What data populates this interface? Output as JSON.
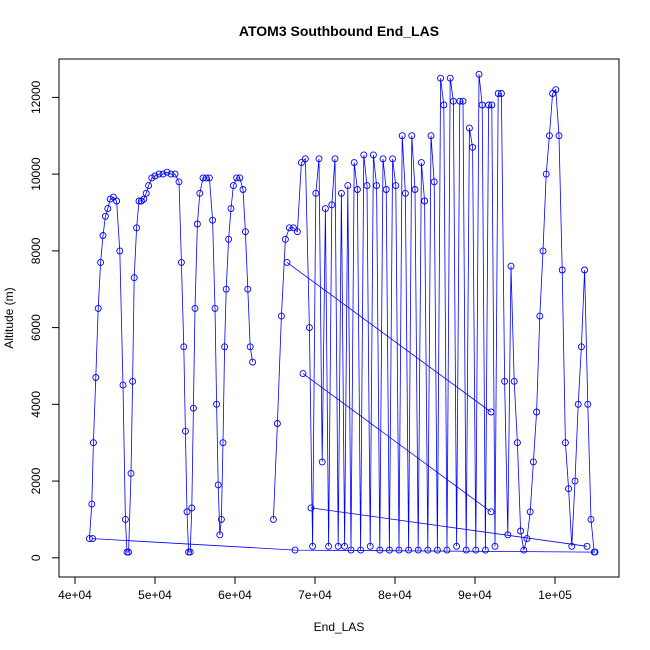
{
  "chart_data": {
    "type": "scatter",
    "title": "ATOM3 Southbound End_LAS",
    "xlabel": "End_LAS",
    "ylabel": "Altitude (m)",
    "xlim": [
      38000,
      108000
    ],
    "ylim": [
      -500,
      13000
    ],
    "xticks": [
      40000,
      50000,
      60000,
      70000,
      80000,
      90000,
      100000
    ],
    "xtick_labels": [
      "4e+04",
      "5e+04",
      "6e+04",
      "7e+04",
      "8e+04",
      "9e+04",
      "1e+05"
    ],
    "yticks": [
      0,
      2000,
      4000,
      6000,
      8000,
      10000,
      12000
    ],
    "ytick_labels": [
      "0",
      "2000",
      "4000",
      "6000",
      "8000",
      "10000",
      "12000"
    ],
    "grid": false,
    "legend": "none",
    "marker": "open-circle",
    "connected": true,
    "color": "#0000ff",
    "series": [
      {
        "x": [
          41800,
          42100,
          42300,
          42600,
          42900,
          43200,
          43500,
          43800,
          44100,
          44400,
          44800,
          45200,
          45600,
          46000,
          46300,
          46500,
          46700,
          47000,
          47200,
          47400,
          47700,
          48000,
          48300,
          48600,
          48900,
          49200,
          49600,
          50000,
          50500,
          51000,
          51500,
          52000,
          52500,
          53000,
          53300,
          53600,
          53800,
          54000,
          54200,
          54400,
          54600,
          54800,
          55000,
          55300,
          55600,
          56000,
          56400,
          56800,
          57200,
          57500,
          57700,
          57900,
          58100,
          58300,
          58500,
          58700,
          58900,
          59200,
          59500,
          59800,
          60200,
          60600,
          61000,
          61300,
          61600,
          61900,
          62200
        ],
        "y": [
          500,
          1400,
          3000,
          4700,
          6500,
          7700,
          8400,
          8900,
          9100,
          9350,
          9400,
          9300,
          8000,
          4500,
          1000,
          150,
          150,
          2200,
          4600,
          7300,
          8600,
          9300,
          9300,
          9350,
          9500,
          9700,
          9900,
          9950,
          10000,
          10000,
          10050,
          10000,
          10000,
          9800,
          7700,
          5500,
          3300,
          1200,
          150,
          150,
          1300,
          3900,
          6500,
          8700,
          9500,
          9900,
          9900,
          9900,
          8800,
          6500,
          4000,
          1900,
          600,
          1000,
          3000,
          5500,
          7000,
          8300,
          9100,
          9700,
          9900,
          9900,
          9600,
          8500,
          7000,
          5500,
          5100
        ]
      },
      {
        "x": [
          42200,
          67500,
          105000
        ],
        "y": [
          500,
          200,
          150
        ]
      },
      {
        "x": [
          64800,
          65300,
          65800,
          66300,
          66800,
          67300,
          67800,
          68300,
          68800,
          69300,
          69700,
          70100,
          70500,
          70900,
          71300,
          71700,
          72100,
          72500,
          72900,
          73300,
          73700,
          74100,
          74500,
          74900,
          75300,
          75700,
          76100,
          76500,
          76900,
          77300,
          77700,
          78100,
          78500,
          78900,
          79300,
          79700,
          80100,
          80500,
          80900,
          81300,
          81700,
          82100,
          82500,
          82900,
          83300,
          83700,
          84100,
          84500,
          84900,
          85300,
          85700,
          86100,
          86500,
          86900,
          87300,
          87700,
          88100,
          88500,
          88900,
          89300,
          89700,
          90100,
          90500,
          90900,
          91300,
          91700,
          92100,
          92500,
          92900,
          93300,
          93700,
          94100,
          94500,
          94900,
          95300,
          95700,
          96100,
          96500,
          96900,
          97300,
          97700,
          98100,
          98500,
          98900,
          99300,
          99700,
          100100,
          100500,
          100900,
          101300,
          101700,
          102100,
          102500,
          102900,
          103300,
          103700,
          104100,
          104500,
          104900
        ],
        "y": [
          1000,
          3500,
          6300,
          8300,
          8600,
          8600,
          8500,
          10300,
          10400,
          6000,
          300,
          9500,
          10400,
          2500,
          9100,
          300,
          9200,
          10400,
          300,
          9500,
          300,
          9700,
          200,
          10300,
          9600,
          200,
          10500,
          9700,
          300,
          10500,
          9700,
          200,
          10400,
          9600,
          200,
          10400,
          9700,
          200,
          11000,
          9500,
          200,
          11000,
          9600,
          200,
          10300,
          9300,
          200,
          11000,
          9800,
          200,
          12500,
          11800,
          200,
          12500,
          11900,
          300,
          11900,
          11900,
          200,
          11200,
          10700,
          200,
          12600,
          11800,
          200,
          11800,
          11800,
          300,
          12100,
          12100,
          4600,
          600,
          7600,
          4600,
          3000,
          700,
          200,
          500,
          1200,
          2500,
          3800,
          6300,
          8000,
          10000,
          11000,
          12100,
          12200,
          11000,
          7500,
          3000,
          1800,
          300,
          2000,
          4000,
          5500,
          7500,
          4000,
          1000,
          150
        ]
      },
      {
        "x": [
          66500,
          92000
        ],
        "y": [
          7700,
          3800
        ]
      },
      {
        "x": [
          68500,
          92000
        ],
        "y": [
          4800,
          1200
        ]
      },
      {
        "x": [
          69500,
          104000
        ],
        "y": [
          1300,
          300
        ]
      }
    ]
  }
}
